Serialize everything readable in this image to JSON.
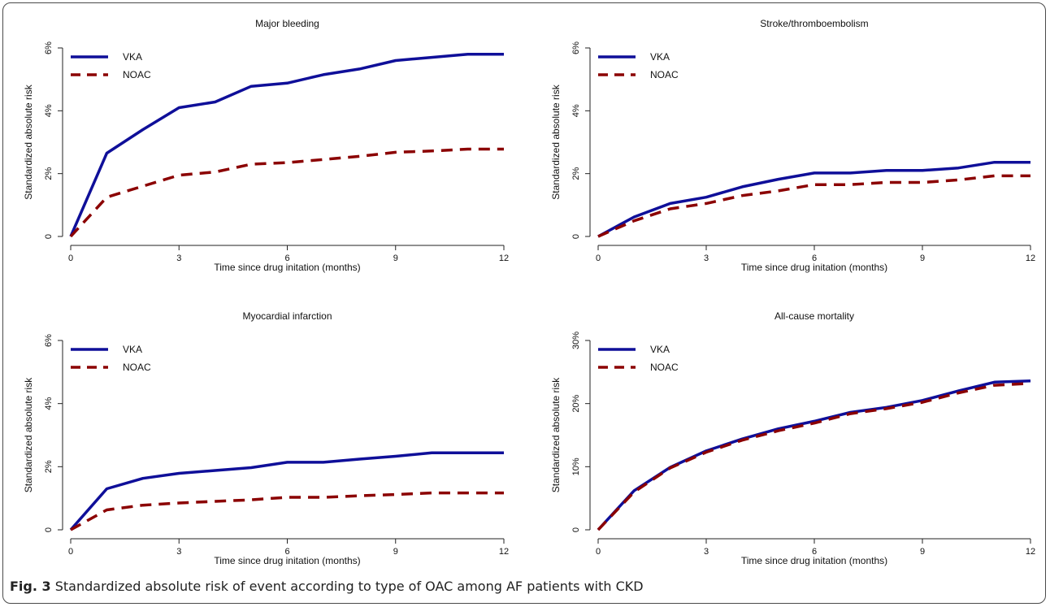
{
  "figure": {
    "caption_label": "Fig. 3",
    "caption_text": "Standardized absolute risk of event according to type of OAC among AF patients with CKD"
  },
  "colors": {
    "vka": "#0f0f99",
    "noac": "#8b0000"
  },
  "chart_data": [
    {
      "type": "line",
      "title": "Major bleeding",
      "xlabel": "Time since drug initation (months)",
      "ylabel": "Standardized absolute risk",
      "xlim": [
        0,
        12
      ],
      "ylim": [
        0,
        6
      ],
      "xticks": [
        "0",
        "3",
        "6",
        "9",
        "12"
      ],
      "yticks": [
        "0",
        "2%",
        "4%",
        "6%"
      ],
      "legend": [
        "VKA",
        "NOAC"
      ],
      "x": [
        0,
        1,
        2,
        3,
        4,
        5,
        6,
        7,
        8,
        9,
        10,
        11,
        12
      ],
      "series": [
        {
          "name": "VKA",
          "values": [
            0,
            2.65,
            3.4,
            4.1,
            4.28,
            4.78,
            4.88,
            5.15,
            5.33,
            5.6,
            5.7,
            5.8,
            5.8
          ]
        },
        {
          "name": "NOAC",
          "values": [
            0,
            1.25,
            1.6,
            1.95,
            2.05,
            2.3,
            2.35,
            2.45,
            2.55,
            2.68,
            2.72,
            2.78,
            2.78
          ]
        }
      ]
    },
    {
      "type": "line",
      "title": "Stroke/thromboembolism",
      "xlabel": "Time since drug initation (months)",
      "ylabel": "Standardized absolute risk",
      "xlim": [
        0,
        12
      ],
      "ylim": [
        0,
        6
      ],
      "xticks": [
        "0",
        "3",
        "6",
        "9",
        "12"
      ],
      "yticks": [
        "0",
        "2%",
        "4%",
        "6%"
      ],
      "legend": [
        "VKA",
        "NOAC"
      ],
      "x": [
        0,
        1,
        2,
        3,
        4,
        5,
        6,
        7,
        8,
        9,
        10,
        11,
        12
      ],
      "series": [
        {
          "name": "VKA",
          "values": [
            0,
            0.62,
            1.05,
            1.25,
            1.58,
            1.82,
            2.02,
            2.02,
            2.1,
            2.1,
            2.18,
            2.36,
            2.36
          ]
        },
        {
          "name": "NOAC",
          "values": [
            0,
            0.5,
            0.88,
            1.05,
            1.3,
            1.45,
            1.65,
            1.65,
            1.72,
            1.72,
            1.8,
            1.93,
            1.93
          ]
        }
      ]
    },
    {
      "type": "line",
      "title": "Myocardial infarction",
      "xlabel": "Time since drug initation (months)",
      "ylabel": "Standardized absolute risk",
      "xlim": [
        0,
        12
      ],
      "ylim": [
        0,
        6
      ],
      "xticks": [
        "0",
        "3",
        "6",
        "9",
        "12"
      ],
      "yticks": [
        "0",
        "2%",
        "4%",
        "6%"
      ],
      "legend": [
        "VKA",
        "NOAC"
      ],
      "x": [
        0,
        1,
        2,
        3,
        4,
        5,
        6,
        7,
        8,
        9,
        10,
        11,
        12
      ],
      "series": [
        {
          "name": "VKA",
          "values": [
            0,
            1.3,
            1.63,
            1.79,
            1.88,
            1.97,
            2.14,
            2.14,
            2.24,
            2.33,
            2.44,
            2.44,
            2.44
          ]
        },
        {
          "name": "NOAC",
          "values": [
            0,
            0.63,
            0.78,
            0.85,
            0.9,
            0.95,
            1.03,
            1.03,
            1.08,
            1.12,
            1.17,
            1.17,
            1.17
          ]
        }
      ]
    },
    {
      "type": "line",
      "title": "All-cause mortality",
      "xlabel": "Time since drug initation (months)",
      "ylabel": "Standardized absolute risk",
      "xlim": [
        0,
        12
      ],
      "ylim": [
        0,
        30
      ],
      "xticks": [
        "0",
        "3",
        "6",
        "9",
        "12"
      ],
      "yticks": [
        "0",
        "10%",
        "20%",
        "30%"
      ],
      "legend": [
        "VKA",
        "NOAC"
      ],
      "x": [
        0,
        1,
        2,
        3,
        4,
        5,
        6,
        7,
        8,
        9,
        10,
        11,
        12
      ],
      "series": [
        {
          "name": "VKA",
          "values": [
            0,
            6.2,
            9.9,
            12.5,
            14.4,
            16.0,
            17.2,
            18.6,
            19.4,
            20.5,
            22.0,
            23.4,
            23.6
          ]
        },
        {
          "name": "NOAC",
          "values": [
            0,
            6.0,
            9.8,
            12.3,
            14.2,
            15.7,
            16.9,
            18.4,
            19.2,
            20.2,
            21.7,
            22.9,
            23.2
          ]
        }
      ]
    }
  ]
}
